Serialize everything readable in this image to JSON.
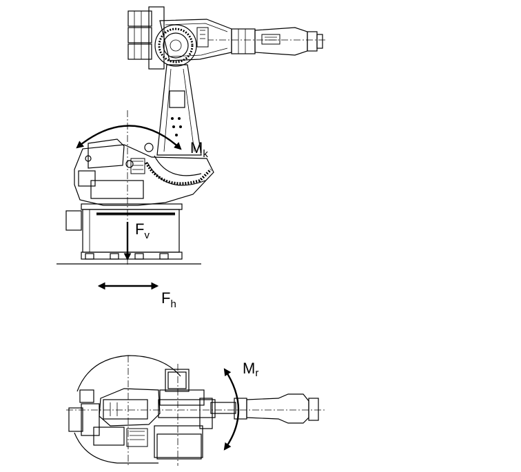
{
  "labels": {
    "tilting_moment": {
      "main": "M",
      "sub": "k"
    },
    "vertical_force": {
      "main": "F",
      "sub": "v"
    },
    "horizontal_force": {
      "main": "F",
      "sub": "h"
    },
    "rotation_moment": {
      "main": "M",
      "sub": "r"
    }
  }
}
